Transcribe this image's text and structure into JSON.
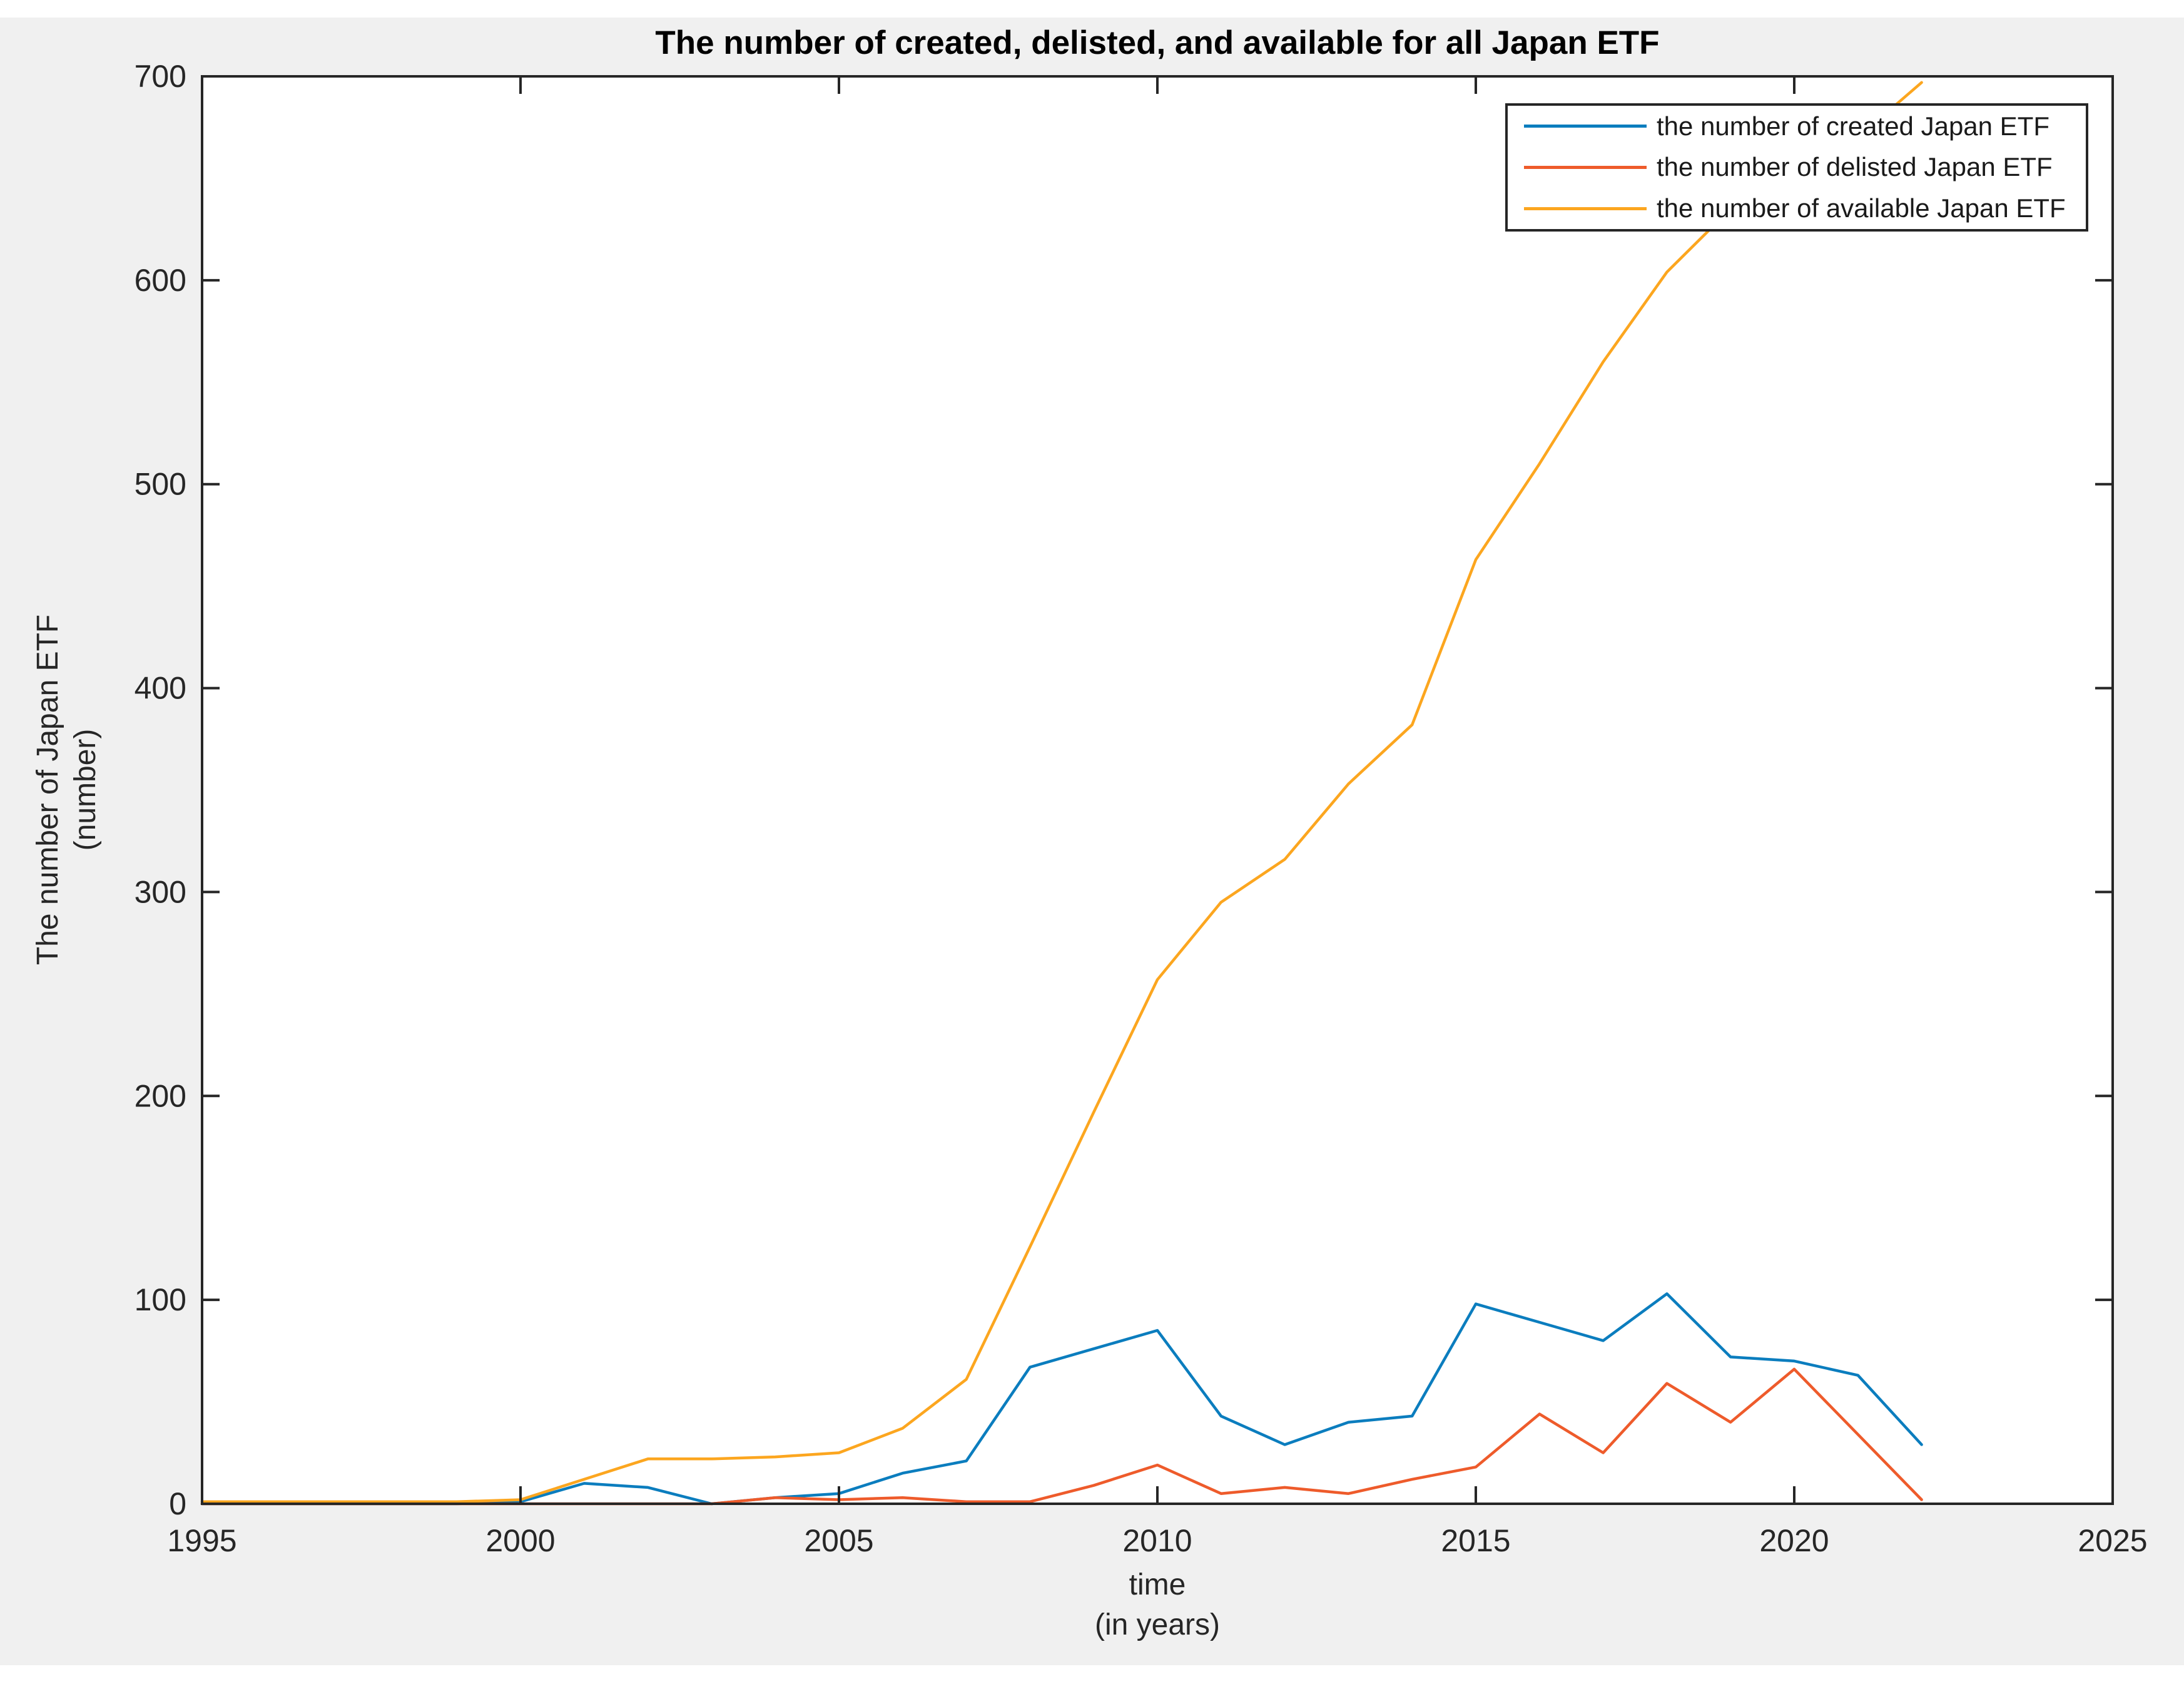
{
  "figure": {
    "background_color": "#f0f0f0",
    "plot_background_color": "#ffffff",
    "axis_color": "#262626",
    "page_margin_color": "#ffffff"
  },
  "chart_data": {
    "type": "line",
    "title": "The number of created, delisted, and available for all Japan ETF",
    "xlabel_line1": "time",
    "xlabel_line2": "(in years)",
    "ylabel_line1": "The number of Japan ETF",
    "ylabel_line2": "(number)",
    "xlim": [
      1995,
      2025
    ],
    "ylim": [
      0,
      700
    ],
    "x_ticks": [
      1995,
      2000,
      2005,
      2010,
      2015,
      2020,
      2025
    ],
    "y_ticks": [
      0,
      100,
      200,
      300,
      400,
      500,
      600,
      700
    ],
    "grid": false,
    "legend_position": "top-right",
    "x": [
      1995,
      1996,
      1997,
      1998,
      1999,
      2000,
      2001,
      2002,
      2003,
      2004,
      2005,
      2006,
      2007,
      2008,
      2009,
      2010,
      2011,
      2012,
      2013,
      2014,
      2015,
      2016,
      2017,
      2018,
      2019,
      2020,
      2021,
      2022
    ],
    "series": [
      {
        "name": "the number of created Japan ETF",
        "color": "#0b7dbe",
        "values": [
          0,
          0,
          0,
          0,
          0,
          1,
          10,
          8,
          0,
          3,
          5,
          15,
          21,
          67,
          76,
          85,
          43,
          29,
          40,
          43,
          98,
          89,
          80,
          103,
          72,
          70,
          63,
          29
        ]
      },
      {
        "name": "the number of delisted Japan ETF",
        "color": "#ee5b2b",
        "values": [
          0,
          0,
          0,
          0,
          0,
          0,
          0,
          0,
          0,
          3,
          2,
          3,
          1,
          1,
          9,
          19,
          5,
          8,
          5,
          12,
          18,
          44,
          25,
          59,
          40,
          66,
          34,
          2
        ]
      },
      {
        "name": "the number of available Japan ETF",
        "color": "#fca61f",
        "values": [
          1,
          1,
          1,
          1,
          1,
          2,
          12,
          22,
          22,
          23,
          25,
          37,
          61,
          126,
          192,
          257,
          295,
          316,
          353,
          382,
          463,
          510,
          560,
          604,
          635,
          650,
          670,
          697
        ]
      }
    ]
  }
}
